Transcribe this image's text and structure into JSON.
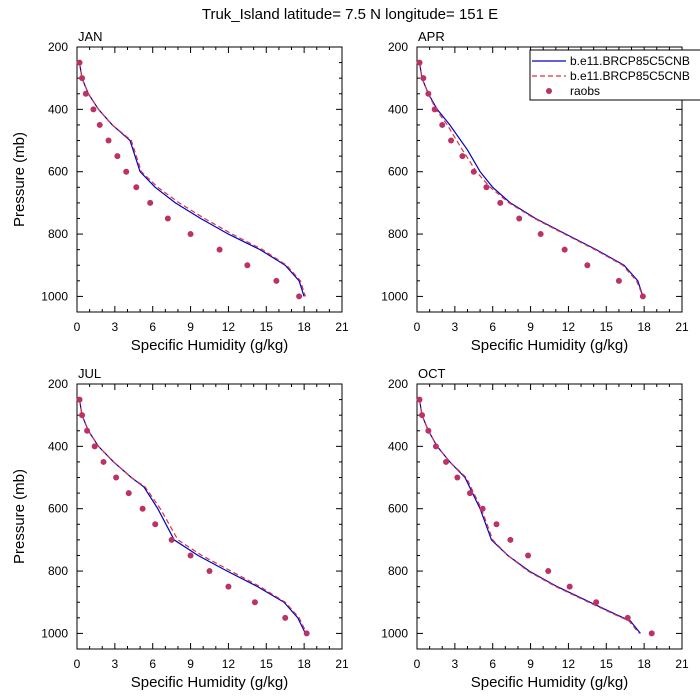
{
  "figure": {
    "title": "Truk_Island  latitude= 7.5 N longitude= 151 E"
  },
  "legend": {
    "placement": "top-right of APR panel",
    "entries": [
      {
        "label": "b.e11.BRCP85C5CNB",
        "style": "solid",
        "color": "#0000cc"
      },
      {
        "label": "b.e11.BRCP85C5CNB",
        "style": "dashed",
        "color": "#dd3333"
      },
      {
        "label": "raobs",
        "style": "dots",
        "color": "#bb3366"
      }
    ]
  },
  "chart_data": [
    {
      "type": "line",
      "panel": "JAN",
      "xlabel": "Specific Humidity (g/kg)",
      "ylabel": "Pressure (mb)",
      "xlim": [
        0,
        21
      ],
      "ylim": [
        1050,
        200
      ],
      "xticks": [
        "0",
        "3",
        "6",
        "9",
        "12",
        "15",
        "18",
        "21"
      ],
      "yticks": [
        "200",
        "400",
        "600",
        "800",
        "1000"
      ],
      "series": [
        {
          "style": "solid",
          "color": "#0000cc",
          "x": [
            0.2,
            0.4,
            0.9,
            1.7,
            2.8,
            4.2,
            5.0,
            6.2,
            7.8,
            9.8,
            12.0,
            14.5,
            16.5,
            17.6,
            18.0
          ],
          "y": [
            250,
            300,
            350,
            400,
            450,
            500,
            600,
            650,
            700,
            750,
            800,
            850,
            900,
            950,
            1000
          ]
        },
        {
          "style": "dashed",
          "color": "#dd3333",
          "x": [
            0.2,
            0.4,
            0.9,
            1.7,
            2.8,
            4.3,
            5.1,
            6.4,
            8.1,
            10.1,
            12.3,
            14.7,
            16.6,
            17.7,
            18.1
          ],
          "y": [
            250,
            300,
            350,
            400,
            450,
            500,
            600,
            650,
            700,
            750,
            800,
            850,
            900,
            950,
            1000
          ]
        },
        {
          "style": "dots",
          "color": "#bb3366",
          "x": [
            0.2,
            0.4,
            0.7,
            1.3,
            1.8,
            2.5,
            3.2,
            3.9,
            4.7,
            5.8,
            7.2,
            9.0,
            11.3,
            13.5,
            15.8,
            17.6
          ],
          "y": [
            250,
            300,
            350,
            400,
            450,
            500,
            550,
            600,
            650,
            700,
            750,
            800,
            850,
            900,
            950,
            1000
          ]
        }
      ]
    },
    {
      "type": "line",
      "panel": "APR",
      "xlabel": "Specific Humidity (g/kg)",
      "ylabel": "",
      "xlim": [
        0,
        21
      ],
      "ylim": [
        1050,
        200
      ],
      "xticks": [
        "0",
        "3",
        "6",
        "9",
        "12",
        "15",
        "18",
        "21"
      ],
      "yticks": [
        "200",
        "400",
        "600",
        "800",
        "1000"
      ],
      "series": [
        {
          "style": "solid",
          "color": "#0000cc",
          "x": [
            0.2,
            0.4,
            0.9,
            1.6,
            2.6,
            4.0,
            5.0,
            6.0,
            7.4,
            9.4,
            11.8,
            14.2,
            16.4,
            17.5,
            17.9
          ],
          "y": [
            250,
            300,
            350,
            400,
            450,
            530,
            600,
            650,
            700,
            750,
            800,
            850,
            900,
            950,
            1000
          ]
        },
        {
          "style": "dashed",
          "color": "#dd3333",
          "x": [
            0.2,
            0.4,
            0.9,
            1.5,
            2.4,
            3.6,
            4.7,
            5.8,
            7.3,
            9.3,
            11.7,
            14.1,
            16.3,
            17.4,
            17.9
          ],
          "y": [
            250,
            300,
            350,
            400,
            450,
            530,
            600,
            650,
            700,
            750,
            800,
            850,
            900,
            950,
            1000
          ]
        },
        {
          "style": "dots",
          "color": "#bb3366",
          "x": [
            0.2,
            0.5,
            0.9,
            1.4,
            2.0,
            2.7,
            3.6,
            4.5,
            5.5,
            6.6,
            8.1,
            9.8,
            11.7,
            13.5,
            16.0,
            17.9
          ],
          "y": [
            250,
            300,
            350,
            400,
            450,
            500,
            550,
            600,
            650,
            700,
            750,
            800,
            850,
            900,
            950,
            1000
          ]
        }
      ]
    },
    {
      "type": "line",
      "panel": "JUL",
      "xlabel": "Specific Humidity (g/kg)",
      "ylabel": "Pressure (mb)",
      "xlim": [
        0,
        21
      ],
      "ylim": [
        1050,
        200
      ],
      "xticks": [
        "0",
        "3",
        "6",
        "9",
        "12",
        "15",
        "18",
        "21"
      ],
      "yticks": [
        "200",
        "400",
        "600",
        "800",
        "1000"
      ],
      "series": [
        {
          "style": "solid",
          "color": "#0000cc",
          "x": [
            0.2,
            0.4,
            0.9,
            1.7,
            2.9,
            4.3,
            5.3,
            6.4,
            7.7,
            9.6,
            11.9,
            14.3,
            16.4,
            17.5,
            18.1
          ],
          "y": [
            250,
            300,
            350,
            400,
            450,
            500,
            530,
            600,
            700,
            750,
            800,
            850,
            900,
            950,
            1000
          ]
        },
        {
          "style": "dashed",
          "color": "#dd3333",
          "x": [
            0.2,
            0.4,
            0.9,
            1.7,
            2.9,
            4.3,
            5.4,
            6.6,
            8.0,
            9.9,
            12.2,
            14.5,
            16.5,
            17.6,
            18.2
          ],
          "y": [
            250,
            300,
            350,
            400,
            450,
            500,
            530,
            600,
            700,
            750,
            800,
            850,
            900,
            950,
            1000
          ]
        },
        {
          "style": "dots",
          "color": "#bb3366",
          "x": [
            0.2,
            0.4,
            0.8,
            1.4,
            2.1,
            3.1,
            4.1,
            5.2,
            6.2,
            7.5,
            9.0,
            10.5,
            12.0,
            14.1,
            16.5,
            18.2
          ],
          "y": [
            250,
            300,
            350,
            400,
            450,
            500,
            550,
            600,
            650,
            700,
            750,
            800,
            850,
            900,
            950,
            1000
          ]
        }
      ]
    },
    {
      "type": "line",
      "panel": "OCT",
      "xlabel": "Specific Humidity (g/kg)",
      "ylabel": "",
      "xlim": [
        0,
        21
      ],
      "ylim": [
        1050,
        200
      ],
      "xticks": [
        "0",
        "3",
        "6",
        "9",
        "12",
        "15",
        "18",
        "21"
      ],
      "yticks": [
        "200",
        "400",
        "600",
        "800",
        "1000"
      ],
      "series": [
        {
          "style": "solid",
          "color": "#0000cc",
          "x": [
            0.2,
            0.4,
            0.9,
            1.6,
            2.6,
            3.8,
            5.0,
            5.9,
            7.2,
            8.9,
            11.1,
            13.7,
            15.8,
            16.9,
            17.7
          ],
          "y": [
            250,
            300,
            350,
            400,
            450,
            500,
            600,
            700,
            750,
            800,
            850,
            900,
            940,
            960,
            1000
          ]
        },
        {
          "style": "dashed",
          "color": "#dd3333",
          "x": [
            0.2,
            0.4,
            0.9,
            1.6,
            2.6,
            3.9,
            5.1,
            6.0,
            7.2,
            8.8,
            11.0,
            13.6,
            15.7,
            16.8,
            17.6
          ],
          "y": [
            250,
            300,
            350,
            400,
            450,
            500,
            600,
            700,
            750,
            800,
            850,
            900,
            940,
            960,
            1000
          ]
        },
        {
          "style": "dots",
          "color": "#bb3366",
          "x": [
            0.2,
            0.4,
            0.9,
            1.5,
            2.3,
            3.2,
            4.2,
            5.2,
            6.3,
            7.4,
            8.8,
            10.4,
            12.1,
            14.2,
            16.7,
            18.6
          ],
          "y": [
            250,
            300,
            350,
            400,
            450,
            500,
            550,
            600,
            650,
            700,
            750,
            800,
            850,
            900,
            950,
            1000
          ]
        }
      ]
    }
  ]
}
